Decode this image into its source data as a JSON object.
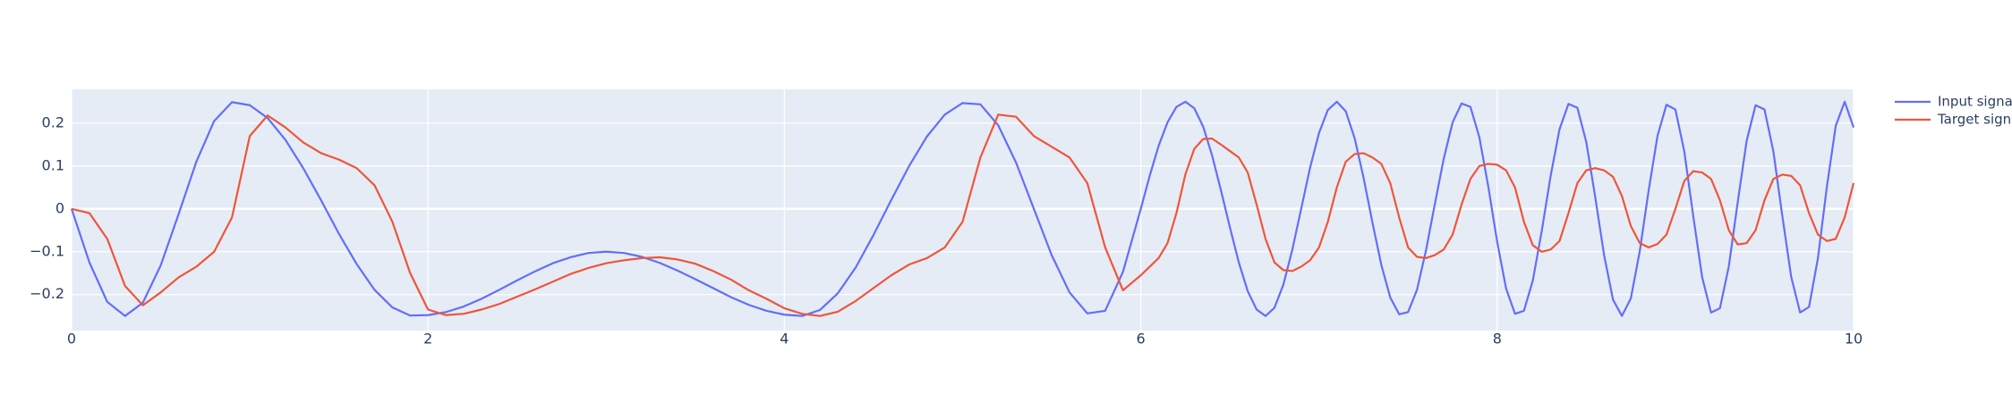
{
  "chart_data": {
    "type": "line",
    "x": [
      0,
      0.1,
      0.2,
      0.3,
      0.4,
      0.5,
      0.6,
      0.7,
      0.8,
      0.9,
      1,
      1.1,
      1.2,
      1.3,
      1.4,
      1.5,
      1.6,
      1.7,
      1.8,
      1.9,
      2,
      2.1,
      2.2,
      2.3,
      2.4,
      2.5,
      2.6,
      2.7,
      2.8,
      2.9,
      3,
      3.1,
      3.2,
      3.3,
      3.4,
      3.5,
      3.6,
      3.7,
      3.8,
      3.9,
      4,
      4.1,
      4.2,
      4.3,
      4.4,
      4.5,
      4.6,
      4.7,
      4.8,
      4.9,
      5,
      5.1,
      5.2,
      5.3,
      5.4,
      5.5,
      5.6,
      5.7,
      5.8,
      5.9,
      6,
      6.05,
      6.1,
      6.15,
      6.2,
      6.25,
      6.3,
      6.35,
      6.4,
      6.45,
      6.5,
      6.55,
      6.6,
      6.65,
      6.7,
      6.75,
      6.8,
      6.85,
      6.9,
      6.95,
      7,
      7.05,
      7.1,
      7.15,
      7.2,
      7.25,
      7.3,
      7.35,
      7.4,
      7.45,
      7.5,
      7.55,
      7.6,
      7.65,
      7.7,
      7.75,
      7.8,
      7.85,
      7.9,
      7.95,
      8,
      8.05,
      8.1,
      8.15,
      8.2,
      8.25,
      8.3,
      8.35,
      8.4,
      8.45,
      8.5,
      8.55,
      8.6,
      8.65,
      8.7,
      8.75,
      8.8,
      8.85,
      8.9,
      8.95,
      9,
      9.05,
      9.1,
      9.15,
      9.2,
      9.25,
      9.3,
      9.35,
      9.4,
      9.45,
      9.5,
      9.55,
      9.6,
      9.65,
      9.7,
      9.75,
      9.8,
      9.85,
      9.9,
      9.95,
      10
    ],
    "series": [
      {
        "name": "Input signal",
        "color": "#636efa",
        "values": [
          0,
          -0.125,
          -0.217,
          -0.25,
          -0.219,
          -0.132,
          -0.013,
          0.11,
          0.205,
          0.249,
          0.242,
          0.212,
          0.161,
          0.095,
          0.02,
          -0.058,
          -0.129,
          -0.189,
          -0.23,
          -0.249,
          -0.248,
          -0.241,
          -0.228,
          -0.21,
          -0.189,
          -0.167,
          -0.146,
          -0.127,
          -0.113,
          -0.103,
          -0.1,
          -0.103,
          -0.112,
          -0.126,
          -0.144,
          -0.164,
          -0.185,
          -0.206,
          -0.224,
          -0.238,
          -0.247,
          -0.25,
          -0.236,
          -0.197,
          -0.137,
          -0.061,
          0.021,
          0.1,
          0.169,
          0.22,
          0.247,
          0.244,
          0.195,
          0.108,
          0,
          -0.108,
          -0.195,
          -0.244,
          -0.238,
          -0.147,
          0,
          0.077,
          0.147,
          0.202,
          0.238,
          0.25,
          0.235,
          0.192,
          0.125,
          0.043,
          -0.043,
          -0.125,
          -0.192,
          -0.235,
          -0.25,
          -0.231,
          -0.177,
          -0.096,
          0,
          0.096,
          0.177,
          0.231,
          0.25,
          0.228,
          0.165,
          0.073,
          -0.032,
          -0.131,
          -0.207,
          -0.246,
          -0.241,
          -0.189,
          -0.098,
          0.011,
          0.117,
          0.202,
          0.246,
          0.238,
          0.167,
          0.052,
          -0.077,
          -0.186,
          -0.245,
          -0.238,
          -0.167,
          -0.052,
          0.077,
          0.186,
          0.245,
          0.236,
          0.156,
          0.028,
          -0.108,
          -0.212,
          -0.25,
          -0.209,
          -0.099,
          0.043,
          0.171,
          0.243,
          0.232,
          0.134,
          -0.016,
          -0.159,
          -0.242,
          -0.232,
          -0.134,
          0.016,
          0.159,
          0.242,
          0.232,
          0.134,
          -0.016,
          -0.159,
          -0.242,
          -0.229,
          -0.115,
          0.051,
          0.194,
          0.25,
          0.19
        ]
      },
      {
        "name": "Target signal",
        "color": "#ef553b",
        "values": [
          0,
          -0.01,
          -0.07,
          -0.18,
          -0.225,
          -0.195,
          -0.16,
          -0.135,
          -0.1,
          -0.02,
          0.17,
          0.218,
          0.19,
          0.155,
          0.13,
          0.115,
          0.095,
          0.055,
          -0.03,
          -0.15,
          -0.235,
          -0.248,
          -0.245,
          -0.235,
          -0.222,
          -0.205,
          -0.188,
          -0.17,
          -0.152,
          -0.138,
          -0.127,
          -0.12,
          -0.115,
          -0.113,
          -0.118,
          -0.128,
          -0.145,
          -0.165,
          -0.19,
          -0.21,
          -0.232,
          -0.245,
          -0.25,
          -0.24,
          -0.215,
          -0.185,
          -0.155,
          -0.13,
          -0.115,
          -0.09,
          -0.03,
          0.12,
          0.22,
          0.215,
          0.17,
          0.145,
          0.12,
          0.06,
          -0.09,
          -0.19,
          -0.155,
          -0.135,
          -0.115,
          -0.08,
          -0.01,
          0.08,
          0.14,
          0.163,
          0.164,
          0.15,
          0.135,
          0.12,
          0.085,
          0.01,
          -0.07,
          -0.125,
          -0.143,
          -0.145,
          -0.135,
          -0.12,
          -0.09,
          -0.03,
          0.05,
          0.11,
          0.128,
          0.13,
          0.12,
          0.105,
          0.06,
          -0.02,
          -0.09,
          -0.112,
          -0.115,
          -0.108,
          -0.095,
          -0.06,
          0.01,
          0.07,
          0.1,
          0.105,
          0.103,
          0.09,
          0.05,
          -0.03,
          -0.085,
          -0.1,
          -0.095,
          -0.075,
          -0.01,
          0.06,
          0.09,
          0.095,
          0.09,
          0.075,
          0.03,
          -0.04,
          -0.08,
          -0.09,
          -0.082,
          -0.06,
          0,
          0.065,
          0.088,
          0.085,
          0.07,
          0.02,
          -0.05,
          -0.083,
          -0.08,
          -0.05,
          0.02,
          0.07,
          0.08,
          0.077,
          0.055,
          -0.01,
          -0.06,
          -0.075,
          -0.07,
          -0.02,
          0.06
        ]
      }
    ],
    "xlim": [
      0,
      10
    ],
    "xticks": [
      0,
      2,
      4,
      6,
      8,
      10
    ],
    "ylim": [
      -0.284,
      0.279
    ],
    "yticks": [
      {
        "value": -0.2,
        "label": "−0.2"
      },
      {
        "value": -0.1,
        "label": "−0.1"
      },
      0,
      0.1,
      0.2
    ],
    "grid": true,
    "legend": "top-right"
  }
}
